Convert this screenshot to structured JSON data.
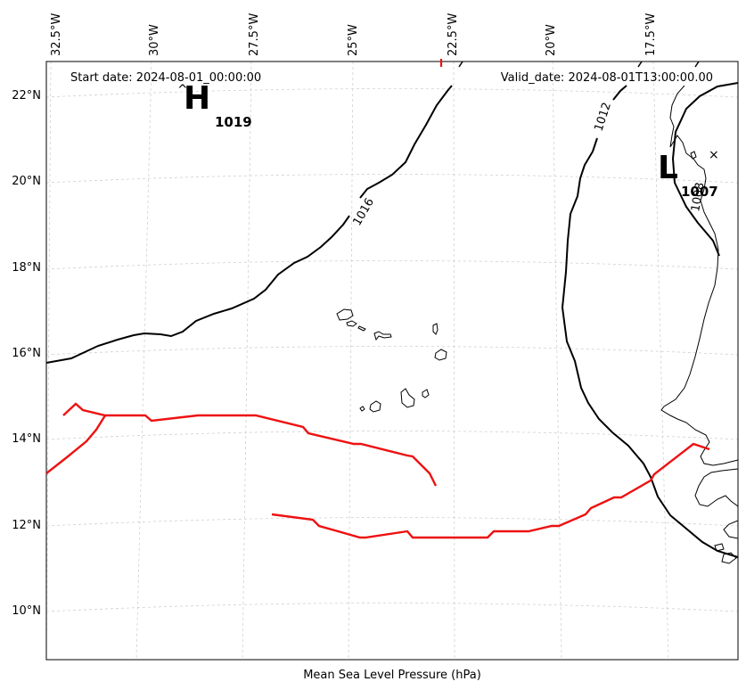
{
  "map": {
    "start_date": "Start date: 2024-08-01_00:00:00",
    "valid_date": "Valid_date: 2024-08-01T13:00:00.00",
    "xlabel": "Mean Sea Level Pressure (hPa)",
    "lon_labels": [
      "32.5°W",
      "30°W",
      "27.5°W",
      "25°W",
      "22.5°W",
      "20°W",
      "17.5°W"
    ],
    "lat_labels": [
      "22°N",
      "20°N",
      "18°N",
      "16°N",
      "14°N",
      "12°N",
      "10°N"
    ],
    "high_center": {
      "symbol": "H",
      "value": "1019"
    },
    "low_center": {
      "symbol": "L",
      "value": "1007"
    },
    "isobar_labels": [
      "1016",
      "1012",
      "1008"
    ],
    "colors": {
      "isobar": "#000000",
      "track": "#ee1111",
      "grid": "#cccccc"
    }
  }
}
